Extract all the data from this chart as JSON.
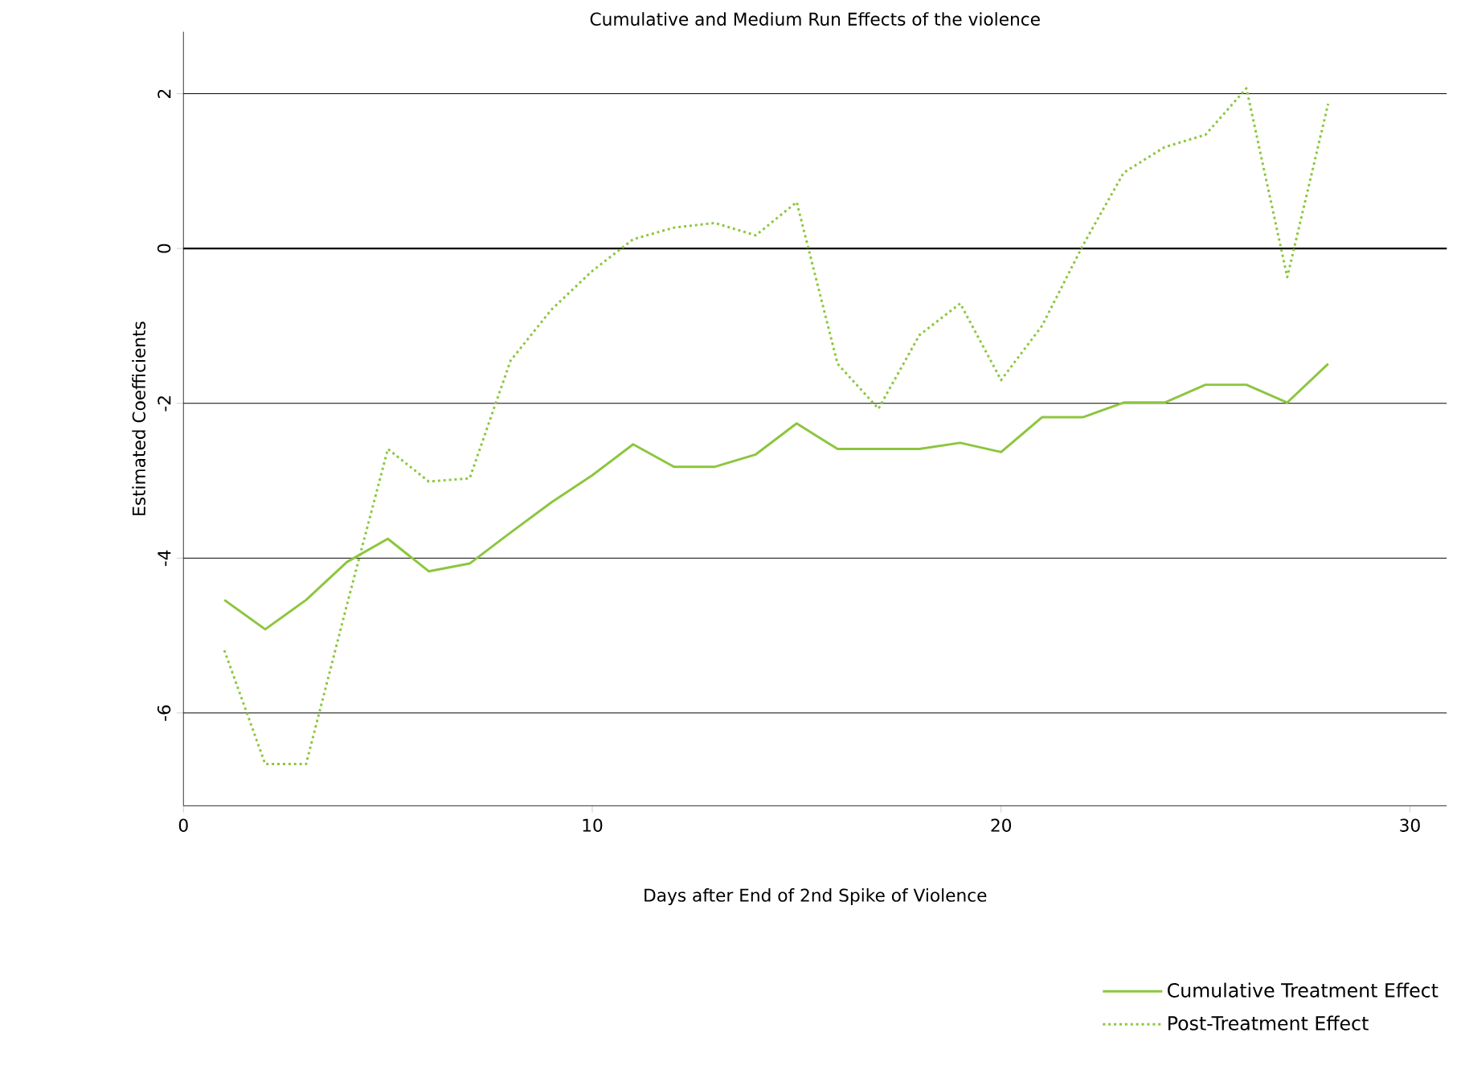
{
  "chart_data": {
    "type": "line",
    "title": "Cumulative and Medium Run Effects of the violence",
    "xlabel": "Days after End of 2nd Spike of Violence",
    "ylabel": "Estimated Coefficients",
    "x": [
      1,
      2,
      3,
      4,
      5,
      6,
      7,
      8,
      9,
      10,
      11,
      12,
      13,
      14,
      15,
      16,
      17,
      18,
      19,
      20,
      21,
      22,
      23,
      24,
      25,
      26,
      27,
      28
    ],
    "series": [
      {
        "name": "Cumulative Treatment Effect",
        "color": "#8cc63e",
        "line_style": "solid",
        "values": [
          -4.54,
          -4.92,
          -4.54,
          -4.05,
          -3.75,
          -4.17,
          -4.07,
          -3.67,
          -3.28,
          -2.93,
          -2.53,
          -2.82,
          -2.82,
          -2.66,
          -2.26,
          -2.59,
          -2.59,
          -2.59,
          -2.51,
          -2.63,
          -2.18,
          -2.18,
          -1.99,
          -1.99,
          -1.76,
          -1.76,
          -1.99,
          -1.49
        ]
      },
      {
        "name": "Post-Treatment Effect",
        "color": "#8cc63e",
        "line_style": "dotted",
        "values": [
          -5.19,
          -6.66,
          -6.66,
          -4.6,
          -2.59,
          -3.01,
          -2.97,
          -1.45,
          -0.79,
          -0.29,
          0.12,
          0.27,
          0.33,
          0.17,
          0.6,
          -1.49,
          -2.07,
          -1.12,
          -0.71,
          -1.7,
          -1.0,
          0.04,
          0.98,
          1.31,
          1.47,
          2.07,
          -0.37,
          1.87
        ]
      }
    ],
    "xlim": [
      0,
      30.9
    ],
    "ylim": [
      -7.2,
      2.8
    ],
    "xticks": [
      0,
      10,
      20,
      30
    ],
    "yticks": [
      -6,
      -4,
      -2,
      0,
      2
    ],
    "grid": "y",
    "legend": "bottom right",
    "ref_lines": [
      {
        "axis": "y",
        "value": 0,
        "color": "#000000"
      }
    ]
  }
}
